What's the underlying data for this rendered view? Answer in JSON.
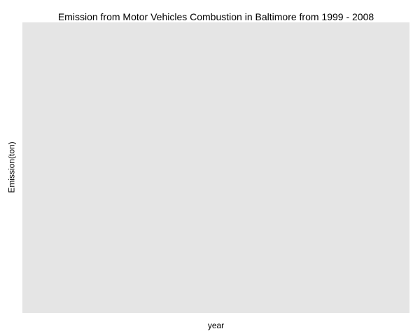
{
  "chart_data": {
    "type": "bar",
    "title": "Emission from Motor Vehicles Combustion in Baltimore from 1999 - 2008",
    "xlabel": "year",
    "ylabel": "Emission(ton)",
    "categories": [],
    "values": [],
    "grid": false,
    "legend": "none",
    "panel_color": "#e5e5e5",
    "background_color": "#ffffff"
  }
}
